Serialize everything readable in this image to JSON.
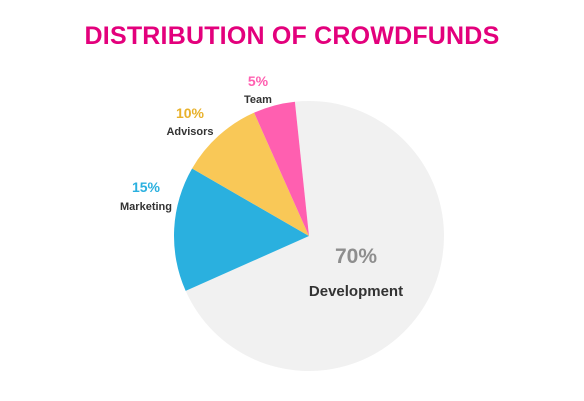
{
  "chart_data": {
    "type": "pie",
    "title": "DISTRIBUTION OF CROWDFUNDS",
    "slices": [
      {
        "label": "Development",
        "value": 70,
        "display": "70%",
        "color": "#f1f1f1"
      },
      {
        "label": "Marketing",
        "value": 15,
        "display": "15%",
        "color": "#2ab0df"
      },
      {
        "label": "Advisors",
        "value": 10,
        "display": "10%",
        "color": "#f9c857"
      },
      {
        "label": "Team",
        "value": 5,
        "display": "5%",
        "color": "#ff5fb0"
      }
    ],
    "title_color": "#e3007c",
    "label_colors": {
      "Marketing": "#2ab0df",
      "Advisors": "#e8b12a",
      "Team": "#ff5fb0",
      "Development": "#8e8e8e"
    }
  }
}
